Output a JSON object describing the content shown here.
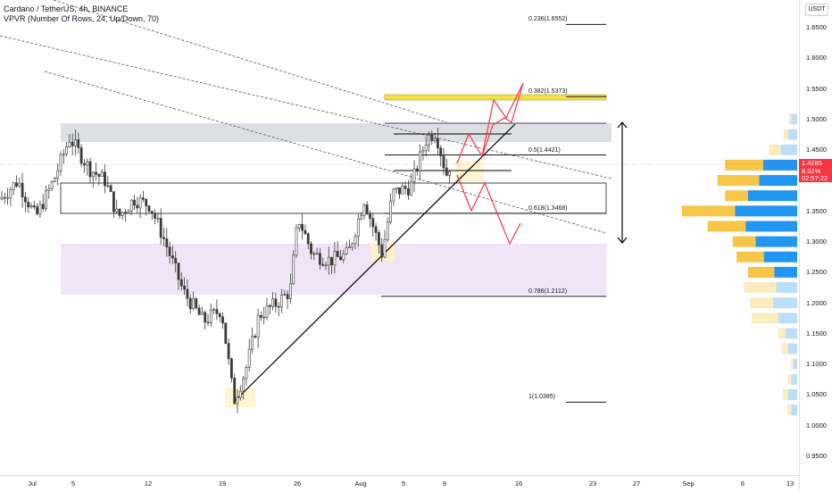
{
  "legend": {
    "symbol": "Cardano / TetherUS, 4h, BINANCE",
    "indicator": "VPVR (Number Of Rows, 24, Up/Down, 70)"
  },
  "price_axis": {
    "currency_button": "USDT",
    "ticks": [
      "1.6500",
      "1.6000",
      "1.5500",
      "1.5000",
      "1.4500",
      "1.4000",
      "1.3500",
      "1.3000",
      "1.2500",
      "1.2000",
      "1.1500",
      "1.1000",
      "1.0500",
      "1.0000",
      "0.9500"
    ],
    "last_price": "1.4285",
    "change_pct": "8.52%",
    "countdown": "02:57:22"
  },
  "time_axis": {
    "ticks": [
      "Jul",
      "5",
      "12",
      "19",
      "26",
      "Aug",
      "5",
      "9",
      "16",
      "23",
      "27",
      "Sep",
      "6",
      "13"
    ]
  },
  "fib_levels": [
    {
      "label": "0.236(1.6552)",
      "price": 1.6552
    },
    {
      "label": "0.382(1.5373)",
      "price": 1.5373
    },
    {
      "label": "0.5(1.4421)",
      "price": 1.4421
    },
    {
      "label": "0.618(1.3468)",
      "price": 1.3468
    },
    {
      "label": "0.786(1.2112)",
      "price": 1.2112
    },
    {
      "label": "1(1.0385)",
      "price": 1.0385
    }
  ],
  "colors": {
    "up_candle": "#26a69a",
    "down_candle": "#ef5350",
    "candle_render": "#3a3a3a",
    "vp_up": "#2196f3",
    "vp_down": "#f7c548",
    "vp_up_faint": "#bbdefb",
    "vp_down_faint": "#fdecc0",
    "resistance_zone": "#d1d4dc",
    "support_zone": "#eedff5",
    "fib_highlight": "#f5e04a",
    "projection": "#f23645",
    "last_price_bg": "#f23645"
  },
  "volume_profile": [
    {
      "price": 1.65,
      "up": 0,
      "down": 0
    },
    {
      "price": 1.5,
      "up": 8,
      "down": 3
    },
    {
      "price": 1.475,
      "up": 12,
      "down": 6
    },
    {
      "price": 1.45,
      "up": 22,
      "down": 15
    },
    {
      "price": 1.425,
      "up": 45,
      "down": 50
    },
    {
      "price": 1.4,
      "up": 50,
      "down": 55
    },
    {
      "price": 1.375,
      "up": 65,
      "down": 30
    },
    {
      "price": 1.35,
      "up": 82,
      "down": 70
    },
    {
      "price": 1.325,
      "up": 68,
      "down": 50
    },
    {
      "price": 1.3,
      "up": 55,
      "down": 30
    },
    {
      "price": 1.275,
      "up": 44,
      "down": 36
    },
    {
      "price": 1.25,
      "up": 30,
      "down": 35
    },
    {
      "price": 1.225,
      "up": 28,
      "down": 42
    },
    {
      "price": 1.2,
      "up": 32,
      "down": 30
    },
    {
      "price": 1.175,
      "up": 25,
      "down": 35
    },
    {
      "price": 1.15,
      "up": 15,
      "down": 10
    },
    {
      "price": 1.125,
      "up": 12,
      "down": 8
    },
    {
      "price": 1.1,
      "up": 5,
      "down": 3
    },
    {
      "price": 1.075,
      "up": 8,
      "down": 4
    },
    {
      "price": 1.05,
      "up": 12,
      "down": 7
    },
    {
      "price": 1.025,
      "up": 8,
      "down": 5
    }
  ]
}
